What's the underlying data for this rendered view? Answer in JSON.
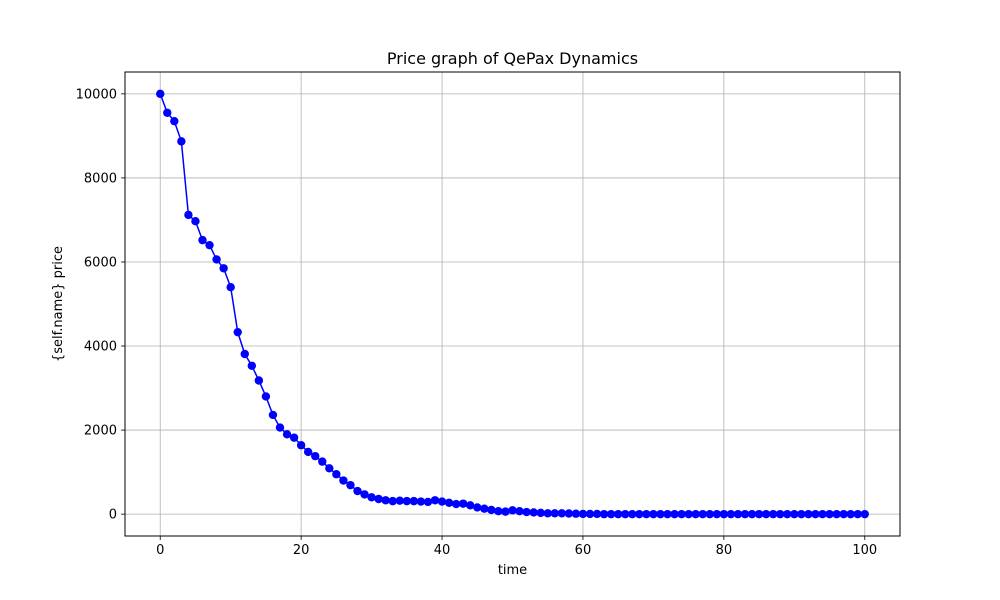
{
  "chart_data": {
    "type": "line",
    "title": "Price graph of QePax Dynamics",
    "xlabel": "time",
    "ylabel": "{self.name} price",
    "xlim": [
      -5,
      105
    ],
    "ylim": [
      -520,
      10520
    ],
    "xticks": [
      0,
      20,
      40,
      60,
      80,
      100
    ],
    "yticks": [
      0,
      2000,
      4000,
      6000,
      8000,
      10000
    ],
    "grid": true,
    "marker": "circle",
    "color": "#0000ff",
    "series": [
      {
        "x": [
          0,
          1,
          2,
          3,
          4,
          5,
          6,
          7,
          8,
          9,
          10,
          11,
          12,
          13,
          14,
          15,
          16,
          17,
          18,
          19,
          20,
          21,
          22,
          23,
          24,
          25,
          26,
          27,
          28,
          29,
          30,
          31,
          32,
          33,
          34,
          35,
          36,
          37,
          38,
          39,
          40,
          41,
          42,
          43,
          44,
          45,
          46,
          47,
          48,
          49,
          50,
          51,
          52,
          53,
          54,
          55,
          56,
          57,
          58,
          59,
          60,
          61,
          62,
          63,
          64,
          65,
          66,
          67,
          68,
          69,
          70,
          71,
          72,
          73,
          74,
          75,
          76,
          77,
          78,
          79,
          80,
          81,
          82,
          83,
          84,
          85,
          86,
          87,
          88,
          89,
          90,
          91,
          92,
          93,
          94,
          95,
          96,
          97,
          98,
          99,
          100
        ],
        "values": [
          10000,
          9550,
          9350,
          8870,
          7120,
          6970,
          6520,
          6400,
          6060,
          5850,
          5400,
          4330,
          3810,
          3530,
          3180,
          2800,
          2360,
          2060,
          1900,
          1820,
          1640,
          1480,
          1380,
          1250,
          1090,
          950,
          800,
          690,
          550,
          470,
          400,
          360,
          330,
          310,
          320,
          310,
          310,
          300,
          290,
          330,
          300,
          270,
          240,
          250,
          210,
          160,
          130,
          100,
          70,
          60,
          90,
          70,
          50,
          40,
          30,
          20,
          20,
          20,
          15,
          10,
          5,
          5,
          5,
          0,
          0,
          0,
          0,
          0,
          0,
          0,
          0,
          0,
          0,
          0,
          0,
          0,
          0,
          0,
          0,
          0,
          0,
          0,
          0,
          0,
          0,
          0,
          0,
          0,
          0,
          0,
          0,
          0,
          0,
          0,
          0,
          0,
          0,
          0,
          0,
          0,
          0
        ]
      }
    ]
  }
}
